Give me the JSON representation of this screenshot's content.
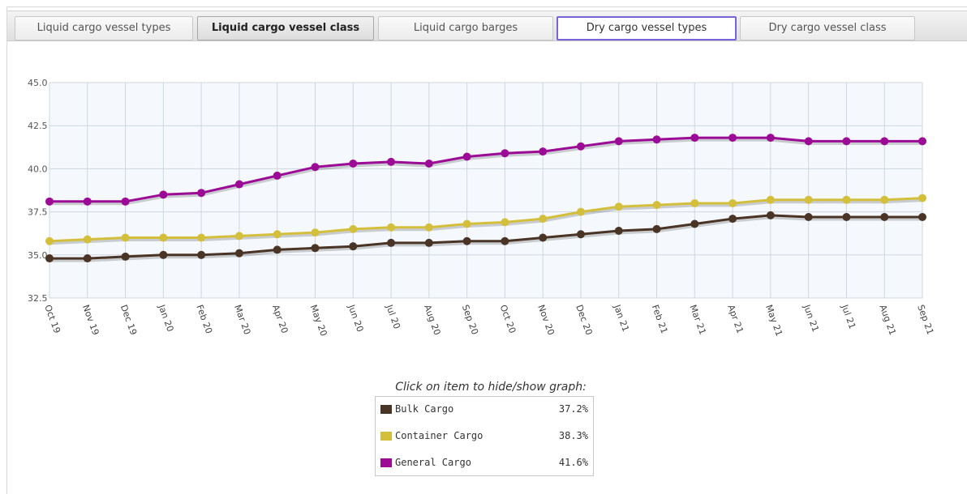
{
  "tabs": [
    {
      "label": "Liquid cargo vessel types",
      "state": "normal"
    },
    {
      "label": "Liquid cargo vessel class",
      "state": "active"
    },
    {
      "label": "Liquid cargo barges",
      "state": "normal"
    },
    {
      "label": "Dry cargo vessel types",
      "state": "focused"
    },
    {
      "label": "Dry cargo vessel class",
      "state": "normal"
    }
  ],
  "legend": {
    "caption": "Click on item to hide/show graph:",
    "items": [
      {
        "label": "Bulk Cargo",
        "value": "37.2%",
        "color": "#4a3426"
      },
      {
        "label": "Container Cargo",
        "value": "38.3%",
        "color": "#d4bf3c"
      },
      {
        "label": "General Cargo",
        "value": "41.6%",
        "color": "#9c0b96"
      }
    ]
  },
  "chart_data": {
    "type": "line",
    "categories": [
      "Oct 19",
      "Nov 19",
      "Dec 19",
      "Jan 20",
      "Feb 20",
      "Mar 20",
      "Apr 20",
      "May 20",
      "Jun 20",
      "Jul 20",
      "Aug 20",
      "Sep 20",
      "Oct 20",
      "Nov 20",
      "Dec 20",
      "Jan 21",
      "Feb 21",
      "Mar 21",
      "Apr 21",
      "May 21",
      "Jun 21",
      "Jul 21",
      "Aug 21",
      "Sep 21"
    ],
    "ylim": [
      32.5,
      45.0
    ],
    "yticks": [
      "32.5",
      "35.0",
      "37.5",
      "40.0",
      "42.5",
      "45.0"
    ],
    "grid": true,
    "series": [
      {
        "name": "Bulk Cargo",
        "color": "#4a3426",
        "values": [
          34.8,
          34.8,
          34.9,
          35.0,
          35.0,
          35.1,
          35.3,
          35.4,
          35.5,
          35.7,
          35.7,
          35.8,
          35.8,
          36.0,
          36.2,
          36.4,
          36.5,
          36.8,
          37.1,
          37.3,
          37.2,
          37.2,
          37.2,
          37.2
        ]
      },
      {
        "name": "Container Cargo",
        "color": "#d4bf3c",
        "values": [
          35.8,
          35.9,
          36.0,
          36.0,
          36.0,
          36.1,
          36.2,
          36.3,
          36.5,
          36.6,
          36.6,
          36.8,
          36.9,
          37.1,
          37.5,
          37.8,
          37.9,
          38.0,
          38.0,
          38.2,
          38.2,
          38.2,
          38.2,
          38.3
        ]
      },
      {
        "name": "General Cargo",
        "color": "#9c0b96",
        "values": [
          38.1,
          38.1,
          38.1,
          38.5,
          38.6,
          39.1,
          39.6,
          40.1,
          40.3,
          40.4,
          40.3,
          40.7,
          40.9,
          41.0,
          41.3,
          41.6,
          41.7,
          41.8,
          41.8,
          41.8,
          41.6,
          41.6,
          41.6,
          41.6
        ]
      }
    ]
  }
}
